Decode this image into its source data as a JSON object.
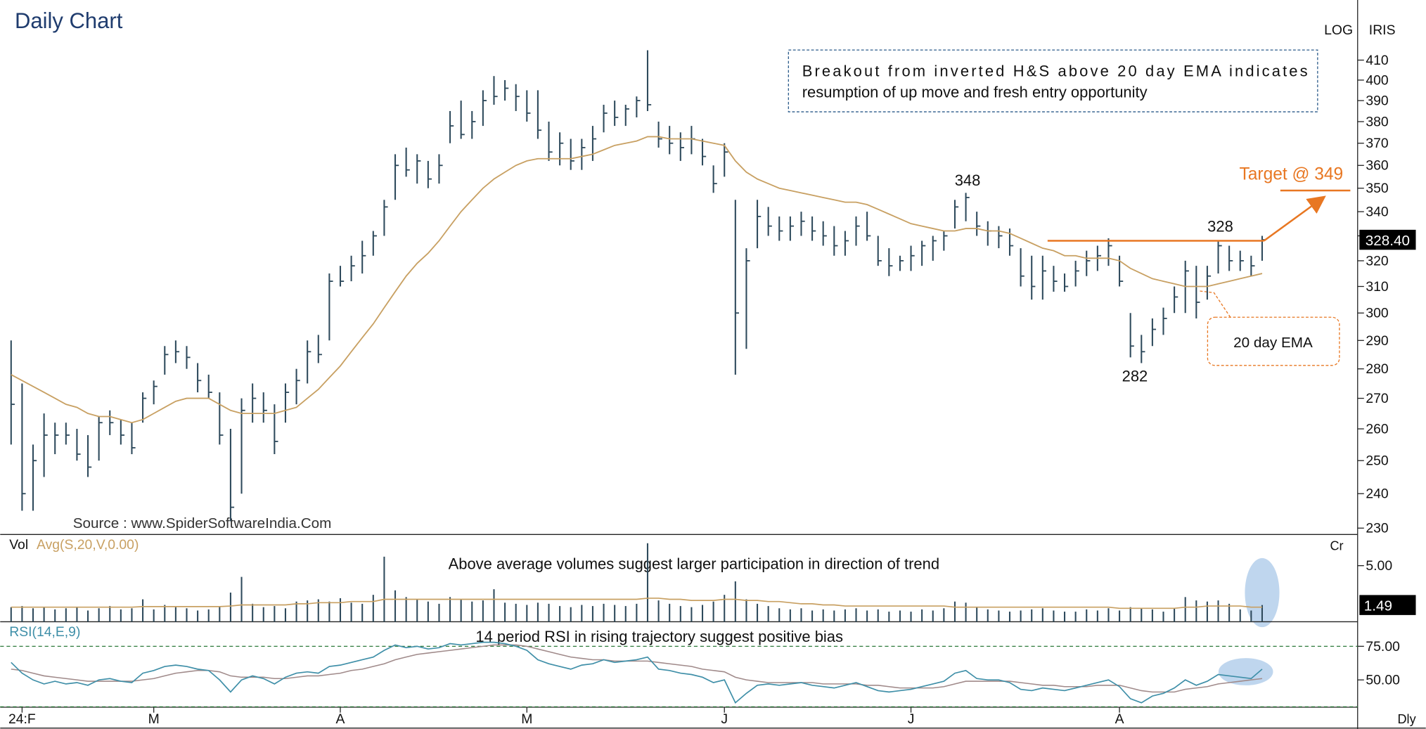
{
  "chart_data": {
    "type": "ohlc",
    "title": "Daily Chart",
    "scale_label": "LOG",
    "vendor": "IRIS",
    "interval": "Dly",
    "source": "Source : www.SpiderSoftwareIndia.Com",
    "note": [
      "Breakout from inverted H&S above 20 day EMA indicates",
      "resumption of up move and  fresh entry opportunity"
    ],
    "ema_label": "20 day EMA",
    "peaks": [
      348,
      328,
      282
    ],
    "target": {
      "value": 349,
      "label": "Target @ 349"
    },
    "last_price": {
      "value": 328.4,
      "label": "328.40"
    },
    "log_scale": true,
    "ylim": [
      228.2,
      441.6
    ],
    "yticks": [
      230,
      240,
      250,
      260,
      270,
      280,
      290,
      300,
      310,
      320,
      330,
      340,
      350,
      360,
      370,
      380,
      390,
      400,
      410
    ],
    "color": "#2e4a5c",
    "ema_color": "#c8a062",
    "categories": [
      null,
      "24:F",
      null,
      null,
      null,
      null,
      null,
      null,
      null,
      null,
      null,
      null,
      null,
      "M",
      null,
      null,
      null,
      null,
      null,
      null,
      null,
      null,
      null,
      null,
      null,
      null,
      null,
      null,
      null,
      null,
      "A",
      null,
      null,
      null,
      null,
      null,
      null,
      null,
      null,
      null,
      null,
      null,
      null,
      null,
      null,
      null,
      null,
      "M",
      null,
      null,
      null,
      null,
      null,
      null,
      null,
      null,
      null,
      null,
      null,
      null,
      null,
      null,
      null,
      null,
      null,
      "J",
      null,
      null,
      null,
      null,
      null,
      null,
      null,
      null,
      null,
      null,
      null,
      null,
      null,
      null,
      null,
      null,
      "J",
      null,
      null,
      null,
      null,
      null,
      null,
      null,
      null,
      null,
      null,
      null,
      null,
      null,
      null,
      null,
      null,
      null,
      null,
      "A",
      null,
      null,
      null,
      null,
      null,
      null,
      null,
      null,
      null,
      null,
      null,
      null,
      null
    ],
    "high": [
      290,
      275,
      255,
      265,
      262,
      262,
      260,
      258,
      264,
      266,
      263,
      262,
      272,
      276,
      288,
      290,
      288,
      282,
      278,
      272,
      260,
      270,
      275,
      272,
      268,
      275,
      280,
      290,
      292,
      315,
      318,
      322,
      328,
      332,
      345,
      365,
      368,
      365,
      362,
      365,
      385,
      390,
      385,
      395,
      402,
      400,
      398,
      395,
      395,
      380,
      375,
      372,
      372,
      378,
      388,
      390,
      388,
      392,
      415,
      380,
      378,
      375,
      378,
      372,
      360,
      370,
      345,
      325,
      345,
      342,
      338,
      338,
      340,
      338,
      336,
      334,
      332,
      338,
      340,
      330,
      325,
      322,
      326,
      328,
      330,
      332,
      345,
      348,
      340,
      336,
      334,
      333,
      325,
      322,
      322,
      318,
      315,
      320,
      324,
      326,
      329,
      322,
      300,
      292,
      298,
      302,
      310,
      320,
      318,
      318,
      328,
      326,
      324,
      322,
      330
    ],
    "low": [
      255,
      235,
      235,
      245,
      252,
      255,
      250,
      245,
      250,
      258,
      255,
      252,
      262,
      268,
      278,
      282,
      280,
      272,
      270,
      255,
      232,
      240,
      262,
      262,
      252,
      262,
      268,
      275,
      282,
      290,
      310,
      312,
      315,
      322,
      330,
      345,
      355,
      352,
      350,
      352,
      370,
      372,
      372,
      378,
      388,
      390,
      385,
      380,
      372,
      362,
      360,
      358,
      358,
      362,
      375,
      378,
      378,
      382,
      385,
      368,
      365,
      362,
      365,
      360,
      348,
      355,
      278,
      287,
      325,
      330,
      328,
      328,
      330,
      328,
      326,
      322,
      322,
      326,
      328,
      318,
      314,
      316,
      316,
      318,
      320,
      324,
      333,
      336,
      330,
      326,
      325,
      322,
      310,
      305,
      305,
      308,
      308,
      310,
      314,
      316,
      318,
      310,
      284,
      282,
      288,
      292,
      300,
      300,
      298,
      305,
      315,
      316,
      316,
      314,
      320
    ],
    "close": [
      268,
      240,
      250,
      258,
      258,
      258,
      252,
      248,
      262,
      262,
      258,
      254,
      270,
      274,
      285,
      286,
      284,
      276,
      272,
      258,
      236,
      266,
      270,
      266,
      256,
      272,
      276,
      286,
      285,
      312,
      312,
      318,
      322,
      330,
      342,
      360,
      358,
      362,
      354,
      360,
      378,
      374,
      380,
      390,
      392,
      396,
      392,
      384,
      376,
      366,
      370,
      362,
      368,
      372,
      384,
      382,
      386,
      390,
      388,
      372,
      370,
      368,
      372,
      364,
      352,
      366,
      300,
      320,
      338,
      334,
      332,
      334,
      336,
      332,
      330,
      326,
      328,
      334,
      330,
      320,
      318,
      320,
      322,
      326,
      328,
      330,
      342,
      346,
      334,
      332,
      330,
      326,
      314,
      310,
      316,
      312,
      310,
      316,
      320,
      322,
      326,
      312,
      288,
      286,
      294,
      298,
      306,
      316,
      304,
      314,
      326,
      320,
      320,
      318,
      328.4
    ],
    "ema": [
      278,
      276,
      274,
      272,
      270,
      268,
      267,
      265,
      264,
      264,
      263,
      262,
      263,
      265,
      267,
      269,
      270,
      270,
      270,
      268,
      266,
      265,
      265,
      265,
      265,
      266,
      267,
      270,
      273,
      277,
      281,
      286,
      291,
      296,
      302,
      308,
      314,
      319,
      323,
      328,
      334,
      340,
      345,
      350,
      354,
      357,
      360,
      362,
      363,
      363,
      363,
      363,
      364,
      365,
      367,
      369,
      370,
      371,
      373,
      373,
      372,
      372,
      372,
      371,
      370,
      369,
      362,
      357,
      354,
      352,
      350,
      349,
      348,
      347,
      346,
      345,
      344,
      344,
      343,
      341,
      339,
      337,
      335,
      334,
      333,
      332,
      332,
      333,
      333,
      332,
      332,
      331,
      329,
      327,
      325,
      324,
      322,
      322,
      321,
      321,
      321,
      320,
      317,
      315,
      313,
      312,
      311,
      310,
      310,
      310,
      311,
      312,
      313,
      314,
      315
    ],
    "volume": {
      "label": "Vol",
      "avg_label": "Avg(S,20,V,0.00)",
      "unit": "Cr",
      "note": "Above average volumes  suggest larger participation in direction of trend",
      "ylim": [
        0,
        7.7
      ],
      "yticks": [
        {
          "value": 5,
          "label": "5.00"
        }
      ],
      "last": 1.49,
      "color": "#2e4a5c",
      "avg_color": "#c8a062",
      "values": [
        1.3,
        1.4,
        1.2,
        1.3,
        1.1,
        1.2,
        1.3,
        1.0,
        1.2,
        1.4,
        1.1,
        1.2,
        2.0,
        1.1,
        1.5,
        1.3,
        1.2,
        1.0,
        1.1,
        1.4,
        2.6,
        4.0,
        1.6,
        1.3,
        1.4,
        1.2,
        1.8,
        1.9,
        2.0,
        1.8,
        2.1,
        1.7,
        1.6,
        2.4,
        5.8,
        2.8,
        2.2,
        2.0,
        1.8,
        1.6,
        2.2,
        2.0,
        1.8,
        1.9,
        2.9,
        1.7,
        1.6,
        1.5,
        1.7,
        1.6,
        1.4,
        1.3,
        1.5,
        1.4,
        1.6,
        1.5,
        1.4,
        1.6,
        7.0,
        1.9,
        1.6,
        1.4,
        1.3,
        1.5,
        1.8,
        2.4,
        3.6,
        2.0,
        1.6,
        1.4,
        1.2,
        1.1,
        1.2,
        1.0,
        1.1,
        1.0,
        1.1,
        1.2,
        1.0,
        1.1,
        0.9,
        1.0,
        0.9,
        1.1,
        1.0,
        1.2,
        1.8,
        1.7,
        1.3,
        1.1,
        1.0,
        0.9,
        1.0,
        1.1,
        1.2,
        1.0,
        0.9,
        0.9,
        1.1,
        1.0,
        1.2,
        1.0,
        1.3,
        1.2,
        1.1,
        0.9,
        1.2,
        2.2,
        1.9,
        1.8,
        1.9,
        1.6,
        1.1,
        1.0,
        1.49
      ],
      "avg": [
        1.3,
        1.3,
        1.3,
        1.3,
        1.3,
        1.3,
        1.3,
        1.3,
        1.3,
        1.3,
        1.3,
        1.3,
        1.35,
        1.35,
        1.35,
        1.35,
        1.35,
        1.35,
        1.35,
        1.35,
        1.4,
        1.5,
        1.5,
        1.5,
        1.5,
        1.5,
        1.6,
        1.6,
        1.7,
        1.7,
        1.7,
        1.8,
        1.8,
        1.8,
        2.0,
        2.0,
        2.0,
        2.0,
        2.0,
        2.0,
        2.0,
        2.0,
        2.0,
        2.0,
        2.0,
        2.0,
        2.0,
        2.0,
        2.0,
        2.0,
        2.0,
        2.0,
        2.0,
        2.0,
        2.0,
        2.0,
        2.0,
        2.0,
        2.1,
        2.1,
        2.0,
        2.0,
        1.9,
        1.9,
        1.9,
        2.0,
        2.0,
        1.9,
        1.9,
        1.8,
        1.8,
        1.7,
        1.6,
        1.6,
        1.5,
        1.5,
        1.4,
        1.4,
        1.4,
        1.4,
        1.4,
        1.4,
        1.4,
        1.4,
        1.4,
        1.4,
        1.3,
        1.3,
        1.3,
        1.3,
        1.3,
        1.3,
        1.3,
        1.3,
        1.3,
        1.3,
        1.3,
        1.3,
        1.3,
        1.3,
        1.3,
        1.2,
        1.2,
        1.2,
        1.2,
        1.2,
        1.2,
        1.3,
        1.3,
        1.4,
        1.4,
        1.4,
        1.4,
        1.3,
        1.3
      ]
    },
    "rsi": {
      "label": "RSI(14,E,9)",
      "note": "14 period RSI in rising trajectory suggest positive bias",
      "ylim": [
        29.7,
        92.6
      ],
      "yticks": [
        {
          "value": 75,
          "label": "75.00"
        },
        {
          "value": 50,
          "label": "50.00"
        }
      ],
      "bands": [
        75,
        30
      ],
      "color": "#3f8fa8",
      "signal_color": "#a08a8a",
      "values": [
        63,
        55,
        50,
        47,
        49,
        47,
        48,
        46,
        50,
        51,
        49,
        48,
        55,
        57,
        60,
        61,
        60,
        58,
        57,
        50,
        41,
        50,
        53,
        51,
        47,
        52,
        55,
        56,
        55,
        60,
        61,
        63,
        65,
        67,
        72,
        76,
        74,
        75,
        73,
        74,
        77,
        76,
        77,
        78,
        78,
        77,
        75,
        72,
        65,
        62,
        60,
        58,
        61,
        62,
        65,
        63,
        64,
        65,
        67,
        58,
        57,
        55,
        54,
        52,
        48,
        50,
        33,
        40,
        46,
        47,
        46,
        47,
        48,
        46,
        45,
        44,
        46,
        48,
        45,
        42,
        41,
        42,
        43,
        45,
        47,
        49,
        55,
        57,
        51,
        50,
        50,
        48,
        43,
        42,
        44,
        43,
        42,
        44,
        46,
        48,
        50,
        45,
        36,
        33,
        38,
        40,
        44,
        50,
        46,
        49,
        54,
        53,
        52,
        51,
        58
      ],
      "signal": [
        58,
        57,
        55,
        53,
        52,
        51,
        50,
        49,
        49,
        49,
        49,
        49,
        50,
        51,
        53,
        55,
        56,
        57,
        57,
        56,
        53,
        52,
        52,
        52,
        51,
        51,
        52,
        53,
        53,
        54,
        55,
        57,
        58,
        60,
        62,
        65,
        67,
        69,
        70,
        71,
        72,
        73,
        74,
        75,
        76,
        76,
        76,
        75,
        73,
        71,
        69,
        67,
        66,
        65,
        65,
        64,
        64,
        64,
        64,
        63,
        62,
        61,
        60,
        58,
        57,
        56,
        52,
        50,
        49,
        48,
        48,
        48,
        48,
        48,
        47,
        47,
        47,
        47,
        46,
        46,
        45,
        44,
        44,
        44,
        44,
        45,
        47,
        49,
        49,
        49,
        49,
        49,
        48,
        47,
        46,
        46,
        45,
        45,
        45,
        46,
        46,
        46,
        44,
        42,
        41,
        41,
        41,
        43,
        44,
        45,
        47,
        48,
        49,
        50,
        51
      ]
    }
  }
}
